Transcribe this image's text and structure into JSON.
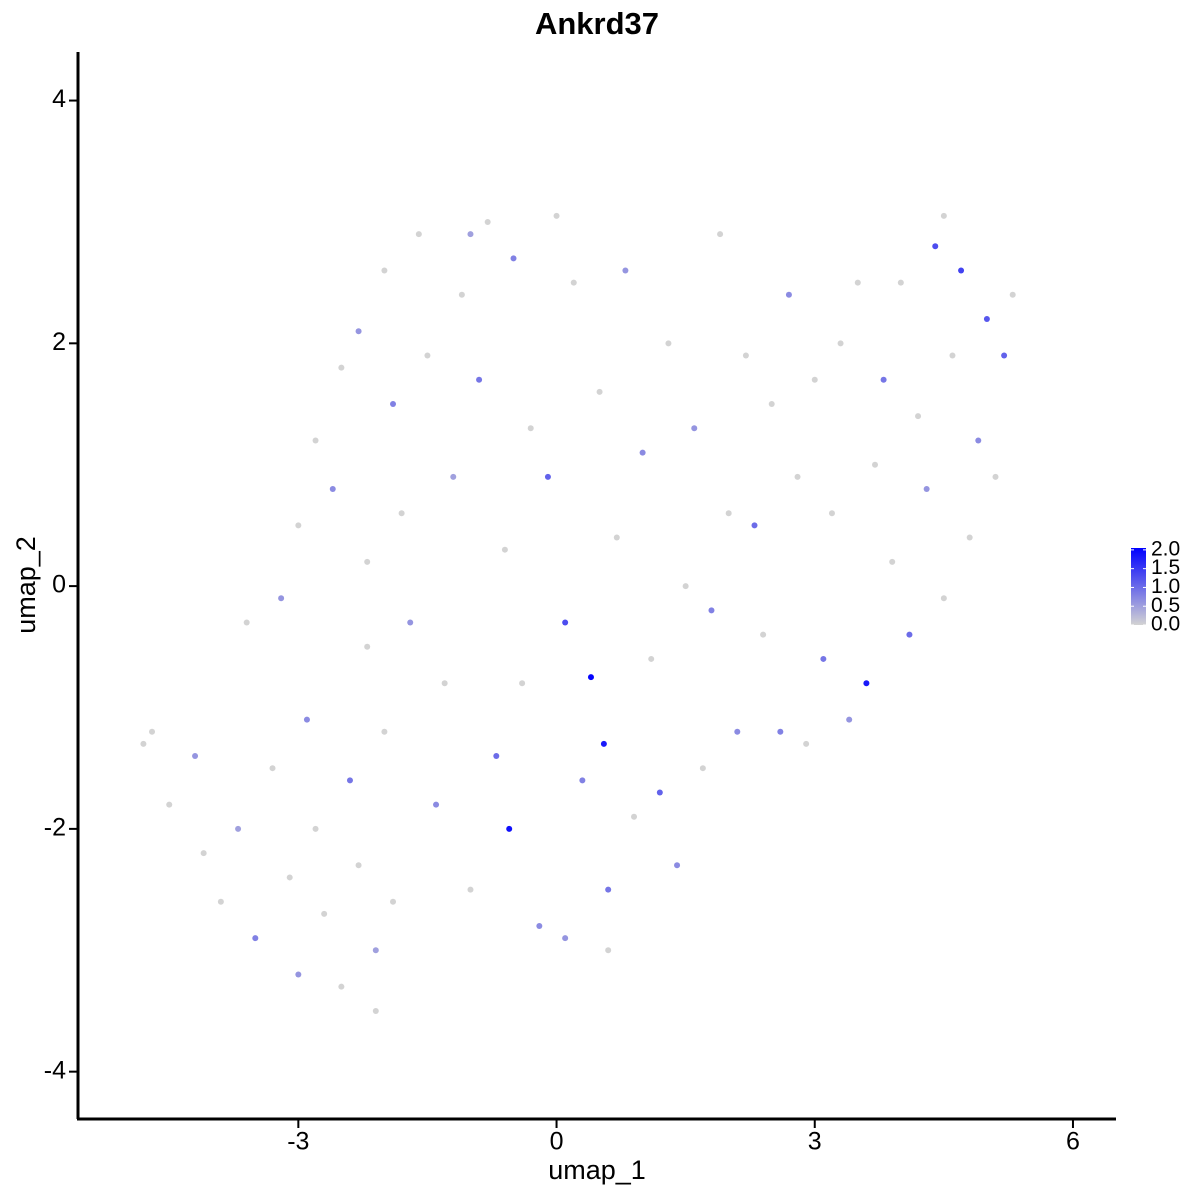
{
  "chart_data": {
    "type": "scatter",
    "title": "Ankrd37",
    "x_label": "umap_1",
    "y_label": "umap_2",
    "xlim": [
      -5.56,
      6.5
    ],
    "ylim": [
      -4.39,
      4.4
    ],
    "xticks": [
      -3,
      0,
      3,
      6
    ],
    "yticks": [
      -4,
      -2,
      0,
      2,
      4
    ],
    "color_low": "#d3d3d3",
    "color_high": "#0000ff",
    "color_lim": [
      0,
      2.05
    ],
    "color_ticks": [
      {
        "value": 0,
        "label": "0.0"
      },
      {
        "value": 0.5,
        "label": "0.5"
      },
      {
        "value": 1,
        "label": "1.0"
      },
      {
        "value": 1.5,
        "label": "1.5"
      },
      {
        "value": 2,
        "label": "2.0"
      }
    ],
    "x": [
      -4.7,
      -4.5,
      -4.2,
      -4.1,
      -3.9,
      -3.7,
      -3.5,
      -3.3,
      -3.1,
      -3.0,
      -2.9,
      -2.8,
      -2.7,
      -2.5,
      -2.4,
      -2.3,
      -2.2,
      -2.1,
      -2.0,
      -1.9,
      -3.6,
      -3.2,
      -3.0,
      -2.8,
      -2.6,
      -2.5,
      -2.3,
      -2.2,
      -2.0,
      -1.9,
      -1.8,
      -1.7,
      -1.6,
      -1.5,
      -1.4,
      -1.3,
      -1.2,
      -1.1,
      -1.0,
      -0.9,
      -0.8,
      -0.7,
      -0.6,
      -0.55,
      -0.5,
      -0.4,
      -0.3,
      -0.2,
      -0.1,
      0.0,
      0.1,
      0.1,
      0.2,
      0.3,
      0.4,
      0.5,
      0.55,
      0.6,
      0.7,
      0.8,
      0.9,
      1.0,
      1.1,
      1.2,
      1.3,
      1.4,
      1.5,
      1.6,
      1.7,
      1.8,
      1.9,
      2.0,
      2.1,
      2.2,
      2.3,
      2.4,
      2.5,
      2.6,
      2.7,
      2.8,
      2.9,
      3.0,
      3.1,
      3.2,
      3.3,
      3.4,
      3.5,
      3.6,
      3.7,
      3.8,
      3.9,
      4.0,
      4.1,
      4.2,
      4.3,
      4.4,
      4.5,
      4.6,
      4.7,
      4.8,
      4.9,
      5.0,
      5.1,
      5.2,
      5.3,
      4.5,
      -1.0,
      0.6,
      -2.1,
      -4.8
    ],
    "y": [
      -1.2,
      -1.8,
      -1.4,
      -2.2,
      -2.6,
      -2.0,
      -2.9,
      -1.5,
      -2.4,
      -3.2,
      -1.1,
      -2.0,
      -2.7,
      -3.3,
      -1.6,
      -2.3,
      -0.5,
      -3.0,
      -1.2,
      -2.6,
      -0.3,
      -0.1,
      0.5,
      1.2,
      0.8,
      1.8,
      2.1,
      0.2,
      2.6,
      1.5,
      0.6,
      -0.3,
      2.9,
      1.9,
      -1.8,
      -0.8,
      0.9,
      2.4,
      -2.5,
      1.7,
      3.0,
      -1.4,
      0.3,
      -2.0,
      2.7,
      -0.8,
      1.3,
      -2.8,
      0.9,
      3.05,
      -0.3,
      -2.9,
      2.5,
      -1.6,
      -0.75,
      1.6,
      -1.3,
      -2.5,
      0.4,
      2.6,
      -1.9,
      1.1,
      -0.6,
      -1.7,
      2.0,
      -2.3,
      0.0,
      1.3,
      -1.5,
      -0.2,
      2.9,
      0.6,
      -1.2,
      1.9,
      0.5,
      -0.4,
      1.5,
      -1.2,
      2.4,
      0.9,
      -1.3,
      1.7,
      -0.6,
      0.6,
      2.0,
      -1.1,
      2.5,
      -0.8,
      1.0,
      1.7,
      0.2,
      2.5,
      -0.4,
      1.4,
      0.8,
      2.8,
      -0.1,
      1.9,
      2.6,
      0.4,
      1.2,
      2.2,
      0.9,
      1.9,
      2.4,
      3.05,
      2.9,
      -3.0,
      -3.5,
      -1.3
    ],
    "expression": [
      0,
      0,
      0.6,
      0,
      0,
      0.5,
      0.8,
      0,
      0,
      0.6,
      0.7,
      0,
      0,
      0,
      0.9,
      0,
      0,
      0.5,
      0,
      0,
      0,
      0.6,
      0,
      0,
      0.7,
      0,
      0.6,
      0,
      0,
      0.8,
      0,
      0.6,
      0,
      0,
      0.7,
      0,
      0.5,
      0,
      0,
      0.9,
      0,
      1.0,
      0,
      1.9,
      0.8,
      0,
      0,
      0.7,
      1.1,
      0,
      1.3,
      0.6,
      0,
      0.8,
      2.0,
      0,
      1.8,
      0.9,
      0,
      0.6,
      0,
      0.7,
      0,
      1.1,
      0,
      0.7,
      0,
      0.6,
      0,
      0.8,
      0,
      0,
      0.7,
      0,
      1.0,
      0,
      0,
      0.8,
      0.7,
      0,
      0,
      0,
      0.9,
      0,
      0,
      0.6,
      0,
      1.8,
      0,
      0.9,
      0,
      0,
      1.0,
      0,
      0.6,
      1.3,
      0,
      0,
      1.4,
      0,
      0.7,
      1.2,
      0,
      1.1,
      0,
      0,
      0.5,
      0,
      0,
      0
    ]
  }
}
